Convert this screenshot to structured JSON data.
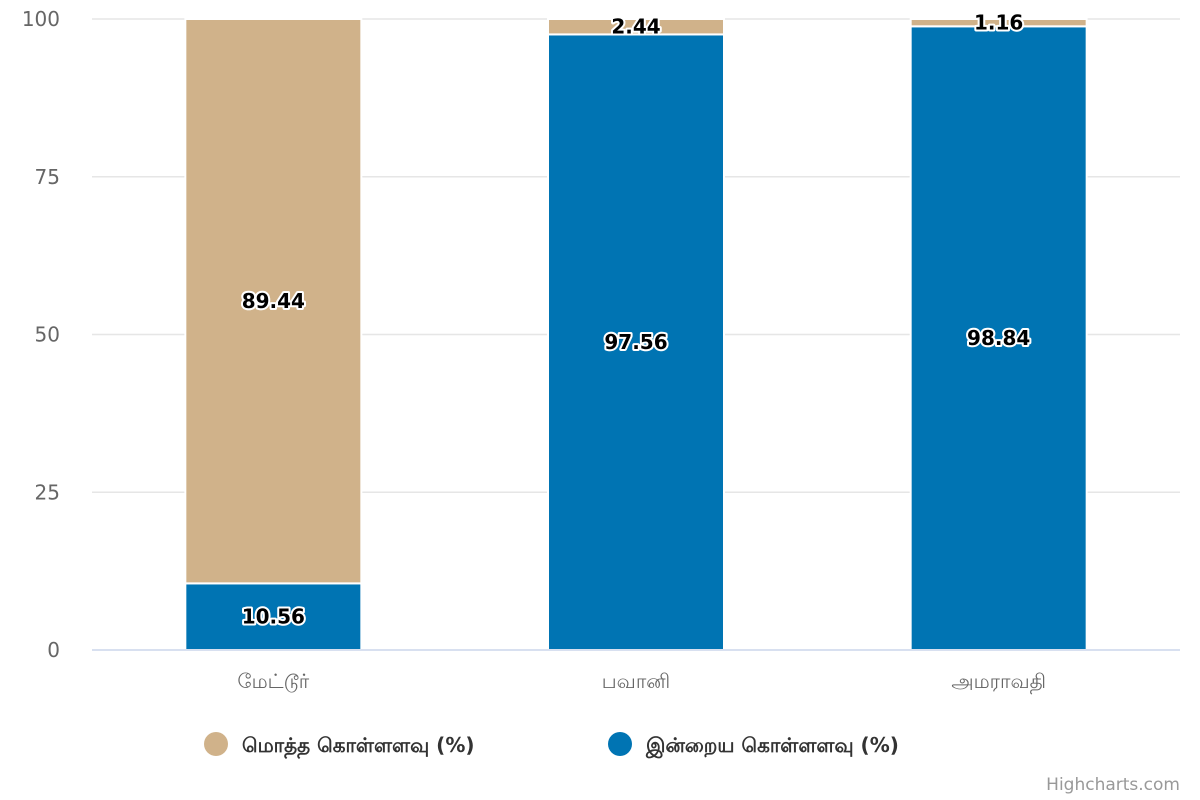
{
  "chart_data": {
    "type": "bar",
    "stacked": true,
    "categories": [
      "மேட்டூர்",
      "பவானி",
      "அமராவதி"
    ],
    "series": [
      {
        "name": "மொத்த கொள்ளளவு (%)",
        "color": "#d0b28a",
        "values": [
          89.44,
          2.44,
          1.16
        ]
      },
      {
        "name": "இன்றைய கொள்ளளவு (%)",
        "color": "#0074b3",
        "values": [
          10.56,
          97.56,
          98.84
        ]
      }
    ],
    "ylim": [
      0,
      100
    ],
    "yticks": [
      0,
      25,
      50,
      75,
      100
    ],
    "grid": true,
    "legend_position": "bottom-center",
    "title": "",
    "xlabel": "",
    "ylabel": ""
  },
  "credits": "Highcharts.com"
}
